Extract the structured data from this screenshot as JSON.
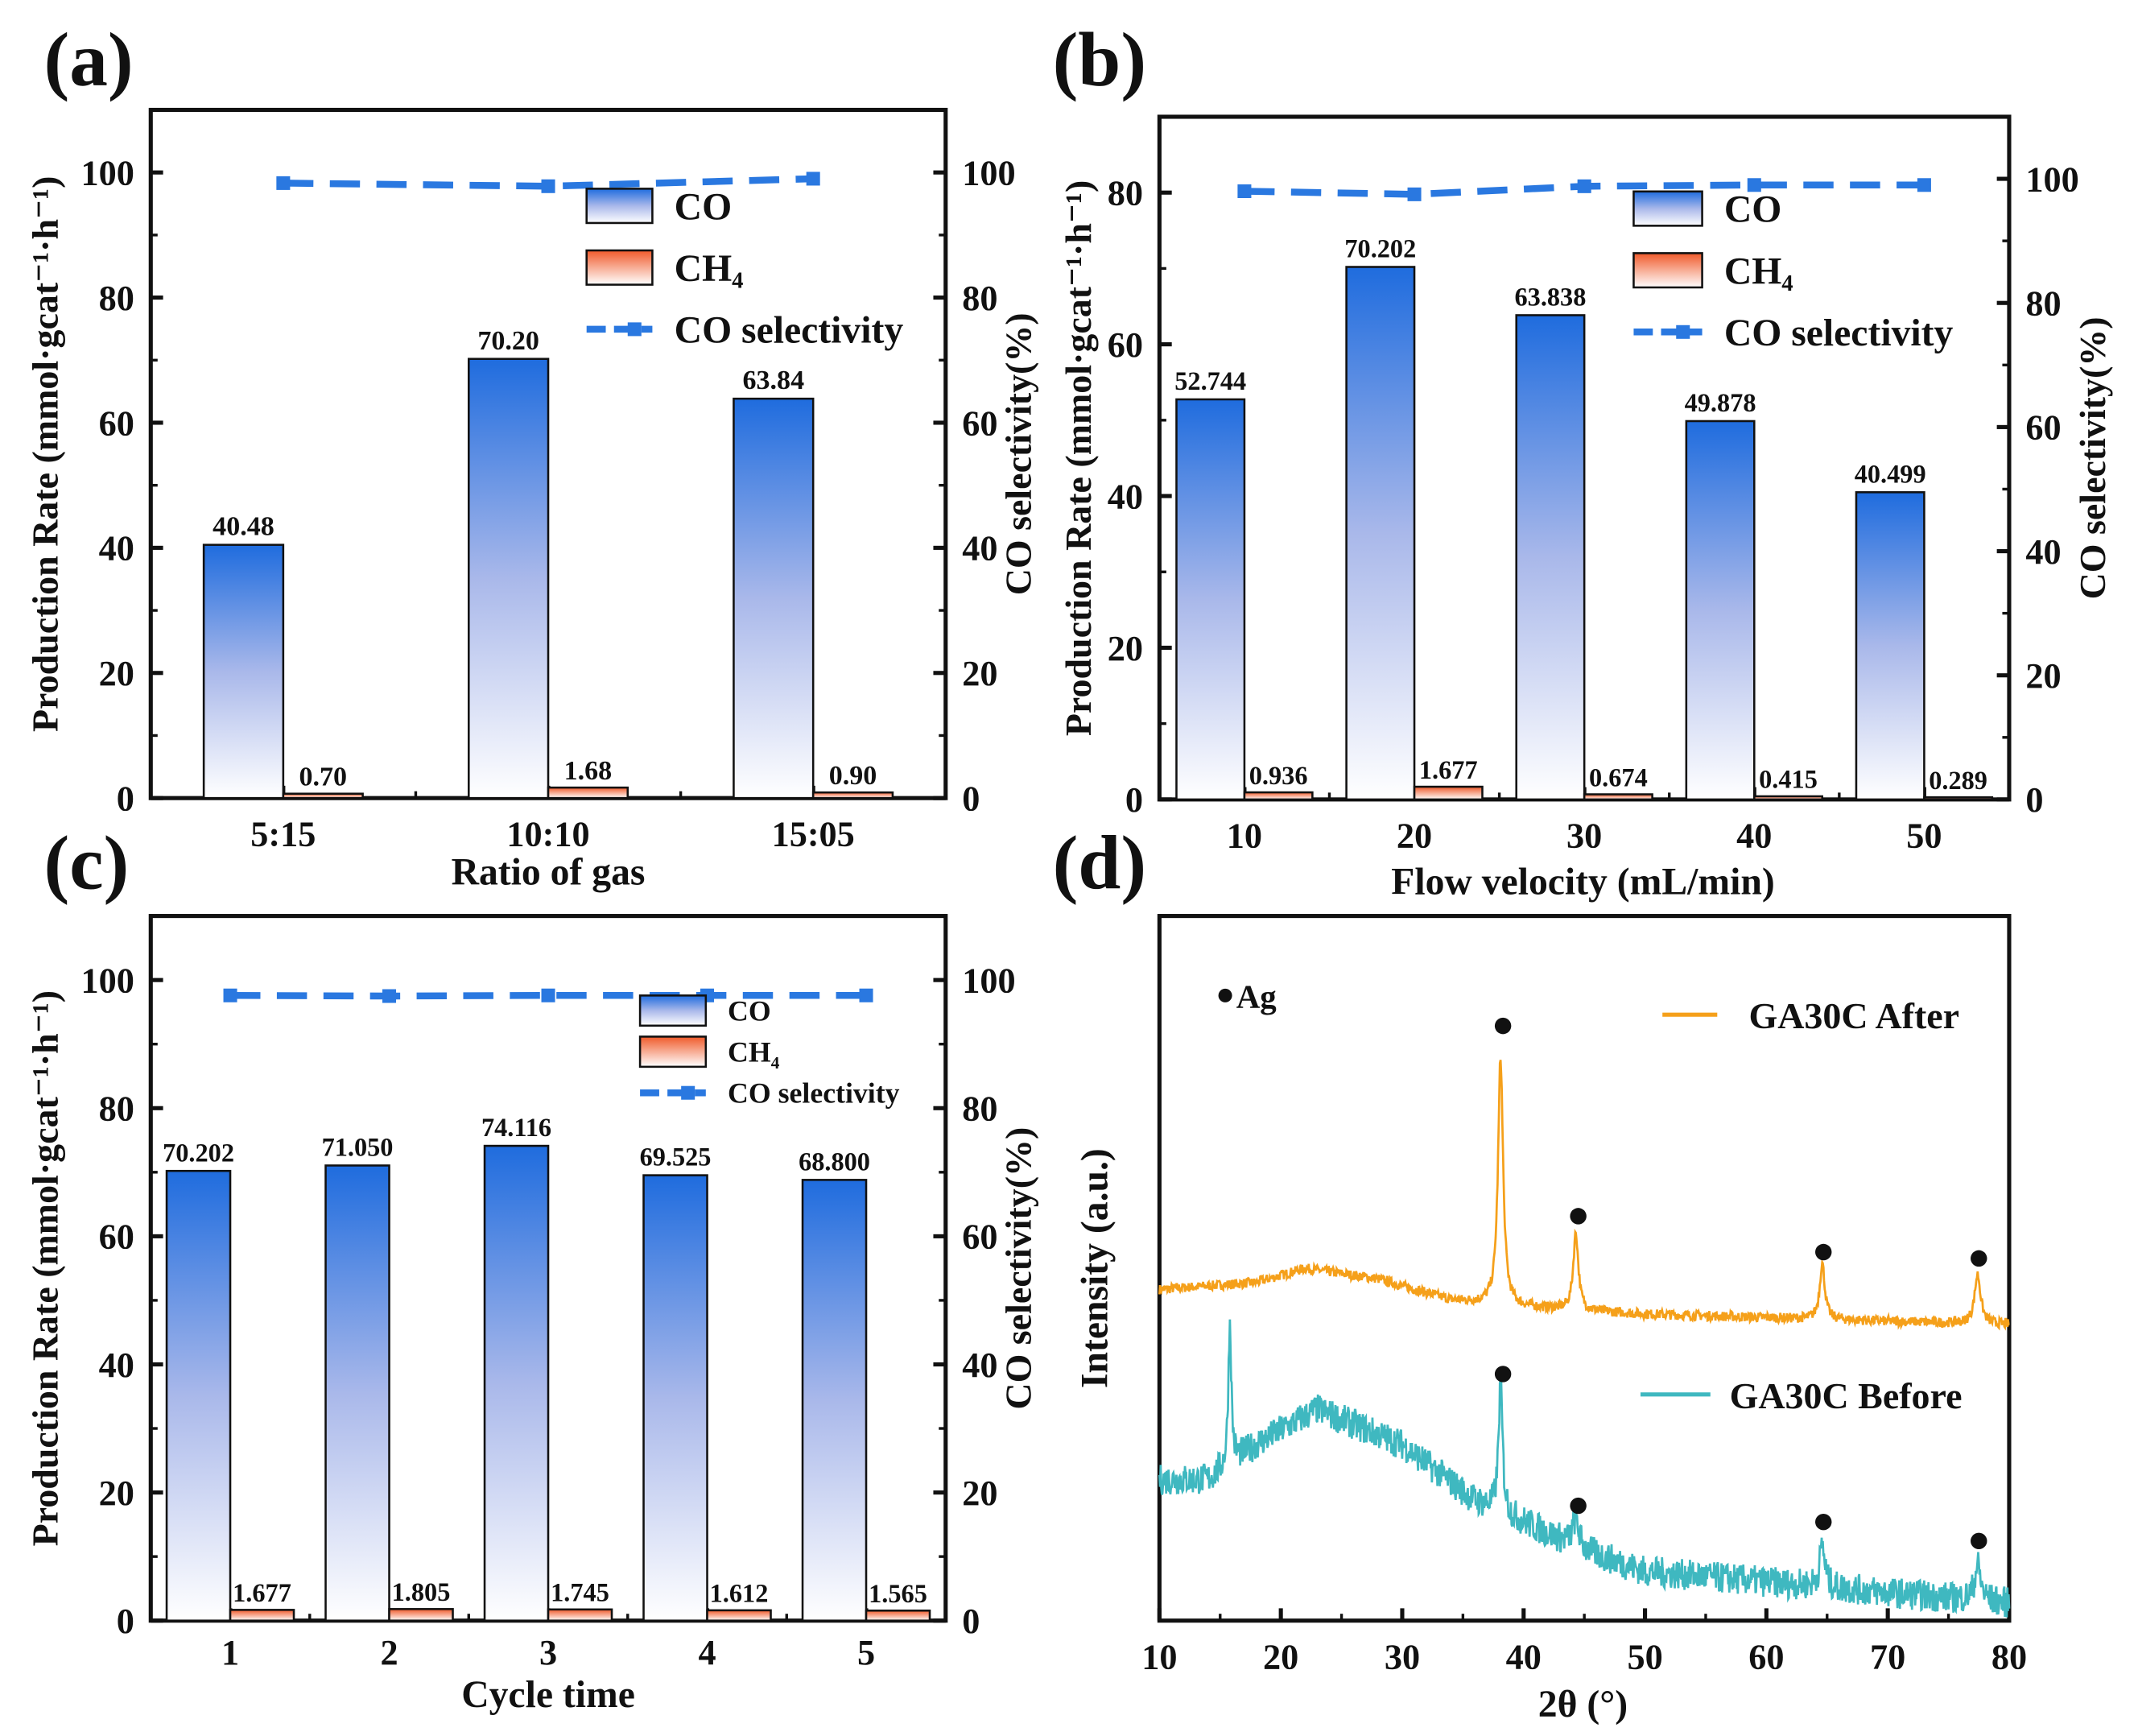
{
  "colors": {
    "co_top": "#1f6cde",
    "ch4_top": "#f05a2a",
    "selectivity": "#2a78e0",
    "after": "#f5a01a",
    "before": "#3fb8c0"
  },
  "chart_data": [
    {
      "panel": "(a)",
      "type": "bar",
      "xlabel": "Ratio of gas",
      "ylabel": "Production Rate (mmol·gcat⁻¹·h⁻¹)",
      "y2label": "CO selectivity(%)",
      "categories": [
        "5:15",
        "10:10",
        "15:05"
      ],
      "ylim": [
        0,
        110
      ],
      "y2lim": [
        0,
        110
      ],
      "yticks": [
        0,
        20,
        40,
        60,
        80,
        100
      ],
      "y2ticks": [
        0,
        20,
        40,
        60,
        80,
        100
      ],
      "series": [
        {
          "name": "CO",
          "values": [
            40.48,
            70.2,
            63.84
          ],
          "labels": [
            "40.48",
            "70.20",
            "63.84"
          ]
        },
        {
          "name": "CH4",
          "values": [
            0.7,
            1.68,
            0.9
          ],
          "labels": [
            "0.70",
            "1.68",
            "0.90"
          ]
        },
        {
          "name": "CO selectivity",
          "axis": "right",
          "values": [
            98.3,
            97.8,
            99.0
          ]
        }
      ],
      "legend": [
        "CO",
        "CH4",
        "CO selectivity"
      ]
    },
    {
      "panel": "(b)",
      "type": "bar",
      "xlabel": "Flow velocity (mL/min)",
      "ylabel": "Production Rate (mmol·gcat⁻¹·h⁻¹)",
      "y2label": "CO selectivity(%)",
      "categories": [
        "10",
        "20",
        "30",
        "40",
        "50"
      ],
      "ylim": [
        0,
        90
      ],
      "y2lim": [
        0,
        110
      ],
      "yticks": [
        0,
        20,
        40,
        60,
        80
      ],
      "y2ticks": [
        0,
        20,
        40,
        60,
        80,
        100
      ],
      "series": [
        {
          "name": "CO",
          "values": [
            52.744,
            70.202,
            63.838,
            49.878,
            40.499
          ],
          "labels": [
            "52.744",
            "70.202",
            "63.838",
            "49.878",
            "40.499"
          ]
        },
        {
          "name": "CH4",
          "values": [
            0.936,
            1.677,
            0.674,
            0.415,
            0.289
          ],
          "labels": [
            "0.936",
            "1.677",
            "0.674",
            "0.415",
            "0.289"
          ]
        },
        {
          "name": "CO selectivity",
          "axis": "right",
          "values": [
            98.0,
            97.5,
            98.8,
            99.0,
            99.0
          ]
        }
      ],
      "legend": [
        "CO",
        "CH4",
        "CO selectivity"
      ]
    },
    {
      "panel": "(c)",
      "type": "bar",
      "xlabel": "Cycle time",
      "ylabel": "Production Rate (mmol·gcat⁻¹·h⁻¹)",
      "y2label": "CO selectivity(%)",
      "categories": [
        "1",
        "2",
        "3",
        "4",
        "5"
      ],
      "ylim": [
        0,
        110
      ],
      "y2lim": [
        0,
        110
      ],
      "yticks": [
        0,
        20,
        40,
        60,
        80,
        100
      ],
      "y2ticks": [
        0,
        20,
        40,
        60,
        80,
        100
      ],
      "series": [
        {
          "name": "CO",
          "values": [
            70.202,
            71.05,
            74.116,
            69.525,
            68.8
          ],
          "labels": [
            "70.202",
            "71.050",
            "74.116",
            "69.525",
            "68.800"
          ]
        },
        {
          "name": "CH4",
          "values": [
            1.677,
            1.805,
            1.745,
            1.612,
            1.565
          ],
          "labels": [
            "1.677",
            "1.805",
            "1.745",
            "1.612",
            "1.565"
          ]
        },
        {
          "name": "CO selectivity",
          "axis": "right",
          "values": [
            97.6,
            97.5,
            97.6,
            97.6,
            97.6
          ]
        }
      ],
      "legend": [
        "CO",
        "CH4",
        "CO selectivity"
      ]
    },
    {
      "panel": "(d)",
      "type": "line",
      "xlabel": "2θ (°)",
      "ylabel": "Intensity (a.u.)",
      "xlim": [
        10,
        80
      ],
      "ylim": [
        0,
        100
      ],
      "xticks": [
        10,
        20,
        30,
        40,
        50,
        60,
        70,
        80
      ],
      "marker_legend": "Ag",
      "series": [
        {
          "name": "GA30C After",
          "color_key": "after",
          "noise": 0.7,
          "baseline": [
            [
              10,
              47
            ],
            [
              18,
              48
            ],
            [
              22,
              50
            ],
            [
              28,
              48.5
            ],
            [
              34,
              45.5
            ],
            [
              40,
              44.5
            ],
            [
              50,
              43.5
            ],
            [
              80,
              42
            ]
          ],
          "peaks": [
            [
              38.1,
              35,
              0.25
            ],
            [
              44.3,
              11,
              0.25
            ],
            [
              64.6,
              8,
              0.25
            ],
            [
              77.4,
              7,
              0.3
            ]
          ],
          "markers": [
            [
              38.3,
              84.4
            ],
            [
              44.5,
              57.4
            ],
            [
              64.7,
              52.3
            ],
            [
              77.5,
              51.4
            ]
          ]
        },
        {
          "name": "GA30C Before",
          "color_key": "before",
          "noise": 2.2,
          "baseline": [
            [
              10,
              20
            ],
            [
              14,
              20
            ],
            [
              18,
              25
            ],
            [
              23,
              30
            ],
            [
              30,
              25
            ],
            [
              36,
              17
            ],
            [
              40,
              14
            ],
            [
              45,
              10
            ],
            [
              50,
              7
            ],
            [
              60,
              5.5
            ],
            [
              70,
              4
            ],
            [
              80,
              2.5
            ]
          ],
          "peaks": [
            [
              15.8,
              20,
              0.15
            ],
            [
              38.1,
              18,
              0.2
            ],
            [
              44.3,
              4,
              0.3
            ],
            [
              64.6,
              6,
              0.25
            ],
            [
              77.4,
              5,
              0.3
            ]
          ],
          "markers": [
            [
              38.3,
              35
            ],
            [
              44.5,
              16.3
            ],
            [
              64.7,
              14
            ],
            [
              77.5,
              11.3
            ]
          ]
        }
      ]
    }
  ]
}
